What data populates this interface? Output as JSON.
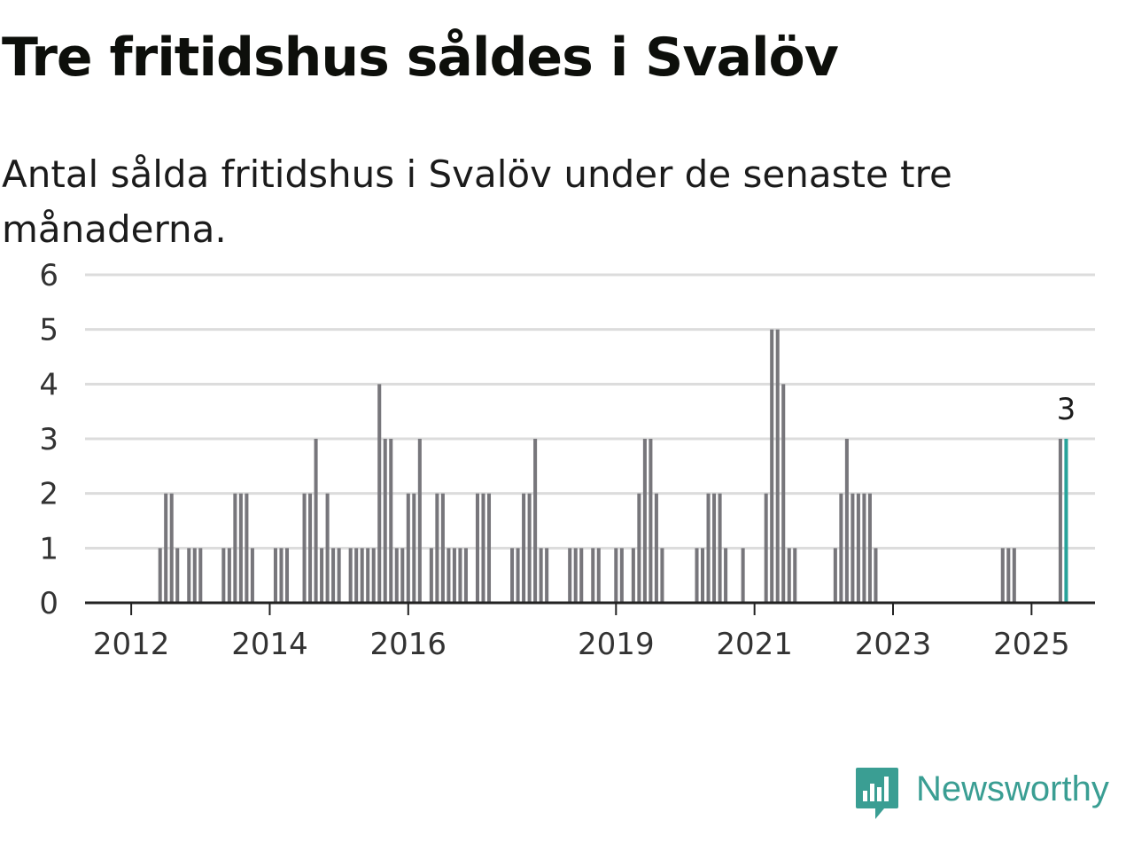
{
  "title": "Tre fritidshus såldes i Svalöv",
  "subtitle": "Antal sålda fritidshus i Svalöv under de senaste tre månaderna.",
  "brand": {
    "name": "Newsworthy",
    "color": "#3a9e93"
  },
  "colors": {
    "bar": "#77767b",
    "highlight": "#28a39a",
    "grid": "#dcdcdc",
    "axis": "#222222",
    "text": "#333333"
  },
  "chart_data": {
    "type": "bar",
    "title": "Tre fritidshus såldes i Svalöv",
    "subtitle": "Antal sålda fritidshus i Svalöv under de senaste tre månaderna.",
    "xlabel": "",
    "ylabel": "",
    "ylim": [
      0,
      6
    ],
    "yticks": [
      0,
      1,
      2,
      3,
      4,
      5,
      6
    ],
    "xticks": [
      "2012",
      "2014",
      "2016",
      "2019",
      "2021",
      "2023",
      "2025"
    ],
    "grid": true,
    "x_range": [
      "2011-05",
      "2025-12"
    ],
    "highlight_label": "3",
    "bars": [
      {
        "x": "2012-06",
        "y": 1
      },
      {
        "x": "2012-07",
        "y": 2
      },
      {
        "x": "2012-08",
        "y": 2
      },
      {
        "x": "2012-09",
        "y": 1
      },
      {
        "x": "2012-11",
        "y": 1
      },
      {
        "x": "2012-12",
        "y": 1
      },
      {
        "x": "2013-01",
        "y": 1
      },
      {
        "x": "2013-05",
        "y": 1
      },
      {
        "x": "2013-06",
        "y": 1
      },
      {
        "x": "2013-07",
        "y": 2
      },
      {
        "x": "2013-08",
        "y": 2
      },
      {
        "x": "2013-09",
        "y": 2
      },
      {
        "x": "2013-10",
        "y": 1
      },
      {
        "x": "2014-02",
        "y": 1
      },
      {
        "x": "2014-03",
        "y": 1
      },
      {
        "x": "2014-04",
        "y": 1
      },
      {
        "x": "2014-07",
        "y": 2
      },
      {
        "x": "2014-08",
        "y": 2
      },
      {
        "x": "2014-09",
        "y": 3
      },
      {
        "x": "2014-10",
        "y": 1
      },
      {
        "x": "2014-11",
        "y": 2
      },
      {
        "x": "2014-12",
        "y": 1
      },
      {
        "x": "2015-01",
        "y": 1
      },
      {
        "x": "2015-03",
        "y": 1
      },
      {
        "x": "2015-04",
        "y": 1
      },
      {
        "x": "2015-05",
        "y": 1
      },
      {
        "x": "2015-06",
        "y": 1
      },
      {
        "x": "2015-07",
        "y": 1
      },
      {
        "x": "2015-08",
        "y": 4
      },
      {
        "x": "2015-09",
        "y": 3
      },
      {
        "x": "2015-10",
        "y": 3
      },
      {
        "x": "2015-11",
        "y": 1
      },
      {
        "x": "2015-12",
        "y": 1
      },
      {
        "x": "2016-01",
        "y": 2
      },
      {
        "x": "2016-02",
        "y": 2
      },
      {
        "x": "2016-03",
        "y": 3
      },
      {
        "x": "2016-05",
        "y": 1
      },
      {
        "x": "2016-06",
        "y": 2
      },
      {
        "x": "2016-07",
        "y": 2
      },
      {
        "x": "2016-08",
        "y": 1
      },
      {
        "x": "2016-09",
        "y": 1
      },
      {
        "x": "2016-10",
        "y": 1
      },
      {
        "x": "2016-11",
        "y": 1
      },
      {
        "x": "2017-01",
        "y": 2
      },
      {
        "x": "2017-02",
        "y": 2
      },
      {
        "x": "2017-03",
        "y": 2
      },
      {
        "x": "2017-07",
        "y": 1
      },
      {
        "x": "2017-08",
        "y": 1
      },
      {
        "x": "2017-09",
        "y": 2
      },
      {
        "x": "2017-10",
        "y": 2
      },
      {
        "x": "2017-11",
        "y": 3
      },
      {
        "x": "2017-12",
        "y": 1
      },
      {
        "x": "2018-01",
        "y": 1
      },
      {
        "x": "2018-05",
        "y": 1
      },
      {
        "x": "2018-06",
        "y": 1
      },
      {
        "x": "2018-07",
        "y": 1
      },
      {
        "x": "2018-09",
        "y": 1
      },
      {
        "x": "2018-10",
        "y": 1
      },
      {
        "x": "2019-01",
        "y": 1
      },
      {
        "x": "2019-02",
        "y": 1
      },
      {
        "x": "2019-04",
        "y": 1
      },
      {
        "x": "2019-05",
        "y": 2
      },
      {
        "x": "2019-06",
        "y": 3
      },
      {
        "x": "2019-07",
        "y": 3
      },
      {
        "x": "2019-08",
        "y": 2
      },
      {
        "x": "2019-09",
        "y": 1
      },
      {
        "x": "2020-03",
        "y": 1
      },
      {
        "x": "2020-04",
        "y": 1
      },
      {
        "x": "2020-05",
        "y": 2
      },
      {
        "x": "2020-06",
        "y": 2
      },
      {
        "x": "2020-07",
        "y": 2
      },
      {
        "x": "2020-08",
        "y": 1
      },
      {
        "x": "2020-11",
        "y": 1
      },
      {
        "x": "2021-03",
        "y": 2
      },
      {
        "x": "2021-04",
        "y": 5
      },
      {
        "x": "2021-05",
        "y": 5
      },
      {
        "x": "2021-06",
        "y": 4
      },
      {
        "x": "2021-07",
        "y": 1
      },
      {
        "x": "2021-08",
        "y": 1
      },
      {
        "x": "2022-03",
        "y": 1
      },
      {
        "x": "2022-04",
        "y": 2
      },
      {
        "x": "2022-05",
        "y": 3
      },
      {
        "x": "2022-06",
        "y": 2
      },
      {
        "x": "2022-07",
        "y": 2
      },
      {
        "x": "2022-08",
        "y": 2
      },
      {
        "x": "2022-09",
        "y": 2
      },
      {
        "x": "2022-10",
        "y": 1
      },
      {
        "x": "2024-08",
        "y": 1
      },
      {
        "x": "2024-09",
        "y": 1
      },
      {
        "x": "2024-10",
        "y": 1
      },
      {
        "x": "2025-06",
        "y": 3
      },
      {
        "x": "2025-07",
        "y": 3,
        "highlight": true
      }
    ]
  }
}
